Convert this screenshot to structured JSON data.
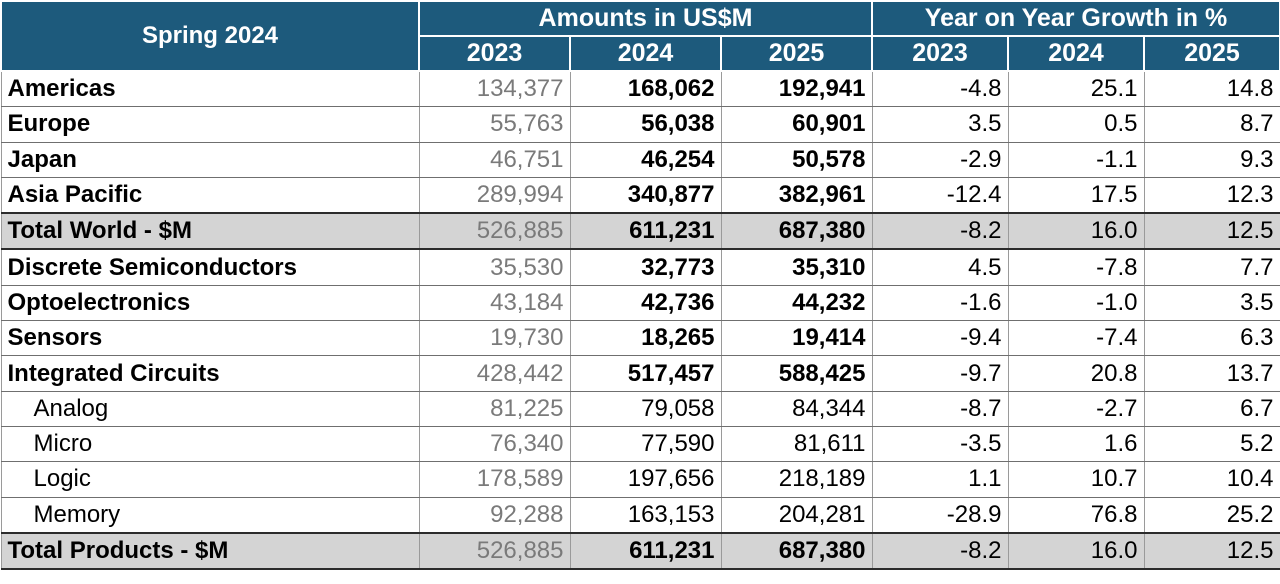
{
  "header": {
    "corner": "Spring 2024",
    "group_amounts": "Amounts in US$M",
    "group_growth": "Year on Year Growth in %",
    "years": [
      "2023",
      "2024",
      "2025",
      "2023",
      "2024",
      "2025"
    ]
  },
  "rows": [
    {
      "label": "Americas",
      "a2023": "134,377",
      "a2024": "168,062",
      "a2025": "192,941",
      "g2023": "-4.8",
      "g2024": "25.1",
      "g2025": "14.8"
    },
    {
      "label": "Europe",
      "a2023": "55,763",
      "a2024": "56,038",
      "a2025": "60,901",
      "g2023": "3.5",
      "g2024": "0.5",
      "g2025": "8.7"
    },
    {
      "label": "Japan",
      "a2023": "46,751",
      "a2024": "46,254",
      "a2025": "50,578",
      "g2023": "-2.9",
      "g2024": "-1.1",
      "g2025": "9.3"
    },
    {
      "label": "Asia Pacific",
      "a2023": "289,994",
      "a2024": "340,877",
      "a2025": "382,961",
      "g2023": "-12.4",
      "g2024": "17.5",
      "g2025": "12.3"
    },
    {
      "label": "Total World - $M",
      "a2023": "526,885",
      "a2024": "611,231",
      "a2025": "687,380",
      "g2023": "-8.2",
      "g2024": "16.0",
      "g2025": "12.5"
    },
    {
      "label": "Discrete Semiconductors",
      "a2023": "35,530",
      "a2024": "32,773",
      "a2025": "35,310",
      "g2023": "4.5",
      "g2024": "-7.8",
      "g2025": "7.7"
    },
    {
      "label": "Optoelectronics",
      "a2023": "43,184",
      "a2024": "42,736",
      "a2025": "44,232",
      "g2023": "-1.6",
      "g2024": "-1.0",
      "g2025": "3.5"
    },
    {
      "label": "Sensors",
      "a2023": "19,730",
      "a2024": "18,265",
      "a2025": "19,414",
      "g2023": "-9.4",
      "g2024": "-7.4",
      "g2025": "6.3"
    },
    {
      "label": "Integrated Circuits",
      "a2023": "428,442",
      "a2024": "517,457",
      "a2025": "588,425",
      "g2023": "-9.7",
      "g2024": "20.8",
      "g2025": "13.7"
    },
    {
      "label": "Analog",
      "a2023": "81,225",
      "a2024": "79,058",
      "a2025": "84,344",
      "g2023": "-8.7",
      "g2024": "-2.7",
      "g2025": "6.7"
    },
    {
      "label": "Micro",
      "a2023": "76,340",
      "a2024": "77,590",
      "a2025": "81,611",
      "g2023": "-3.5",
      "g2024": "1.6",
      "g2025": "5.2"
    },
    {
      "label": "Logic",
      "a2023": "178,589",
      "a2024": "197,656",
      "a2025": "218,189",
      "g2023": "1.1",
      "g2024": "10.7",
      "g2025": "10.4"
    },
    {
      "label": "Memory",
      "a2023": "92,288",
      "a2024": "163,153",
      "a2025": "204,281",
      "g2023": "-28.9",
      "g2024": "76.8",
      "g2025": "25.2"
    },
    {
      "label": "Total Products - $M",
      "a2023": "526,885",
      "a2024": "611,231",
      "a2025": "687,380",
      "g2023": "-8.2",
      "g2024": "16.0",
      "g2025": "12.5"
    }
  ],
  "colors": {
    "header_bg": "#1d5a7c",
    "header_text": "#ffffff",
    "total_row_bg": "#d4d4d4",
    "historic_value_text": "#7a7a7a"
  },
  "chart_data": {
    "type": "table",
    "title": "Spring 2024",
    "columns": [
      "Amounts in US$M 2023",
      "Amounts in US$M 2024",
      "Amounts in US$M 2025",
      "Year on Year Growth in % 2023",
      "Year on Year Growth in % 2024",
      "Year on Year Growth in % 2025"
    ],
    "row_labels": [
      "Americas",
      "Europe",
      "Japan",
      "Asia Pacific",
      "Total World - $M",
      "Discrete Semiconductors",
      "Optoelectronics",
      "Sensors",
      "Integrated Circuits",
      "Analog",
      "Micro",
      "Logic",
      "Memory",
      "Total Products - $M"
    ],
    "values": [
      [
        134377,
        168062,
        192941,
        -4.8,
        25.1,
        14.8
      ],
      [
        55763,
        56038,
        60901,
        3.5,
        0.5,
        8.7
      ],
      [
        46751,
        46254,
        50578,
        -2.9,
        -1.1,
        9.3
      ],
      [
        289994,
        340877,
        382961,
        -12.4,
        17.5,
        12.3
      ],
      [
        526885,
        611231,
        687380,
        -8.2,
        16.0,
        12.5
      ],
      [
        35530,
        32773,
        35310,
        4.5,
        -7.8,
        7.7
      ],
      [
        43184,
        42736,
        44232,
        -1.6,
        -1.0,
        3.5
      ],
      [
        19730,
        18265,
        19414,
        -9.4,
        -7.4,
        6.3
      ],
      [
        428442,
        517457,
        588425,
        -9.7,
        20.8,
        13.7
      ],
      [
        81225,
        79058,
        84344,
        -8.7,
        -2.7,
        6.7
      ],
      [
        76340,
        77590,
        81611,
        -3.5,
        1.6,
        5.2
      ],
      [
        178589,
        197656,
        218189,
        1.1,
        10.7,
        10.4
      ],
      [
        92288,
        163153,
        204281,
        -28.9,
        76.8,
        25.2
      ],
      [
        526885,
        611231,
        687380,
        -8.2,
        16.0,
        12.5
      ]
    ]
  }
}
